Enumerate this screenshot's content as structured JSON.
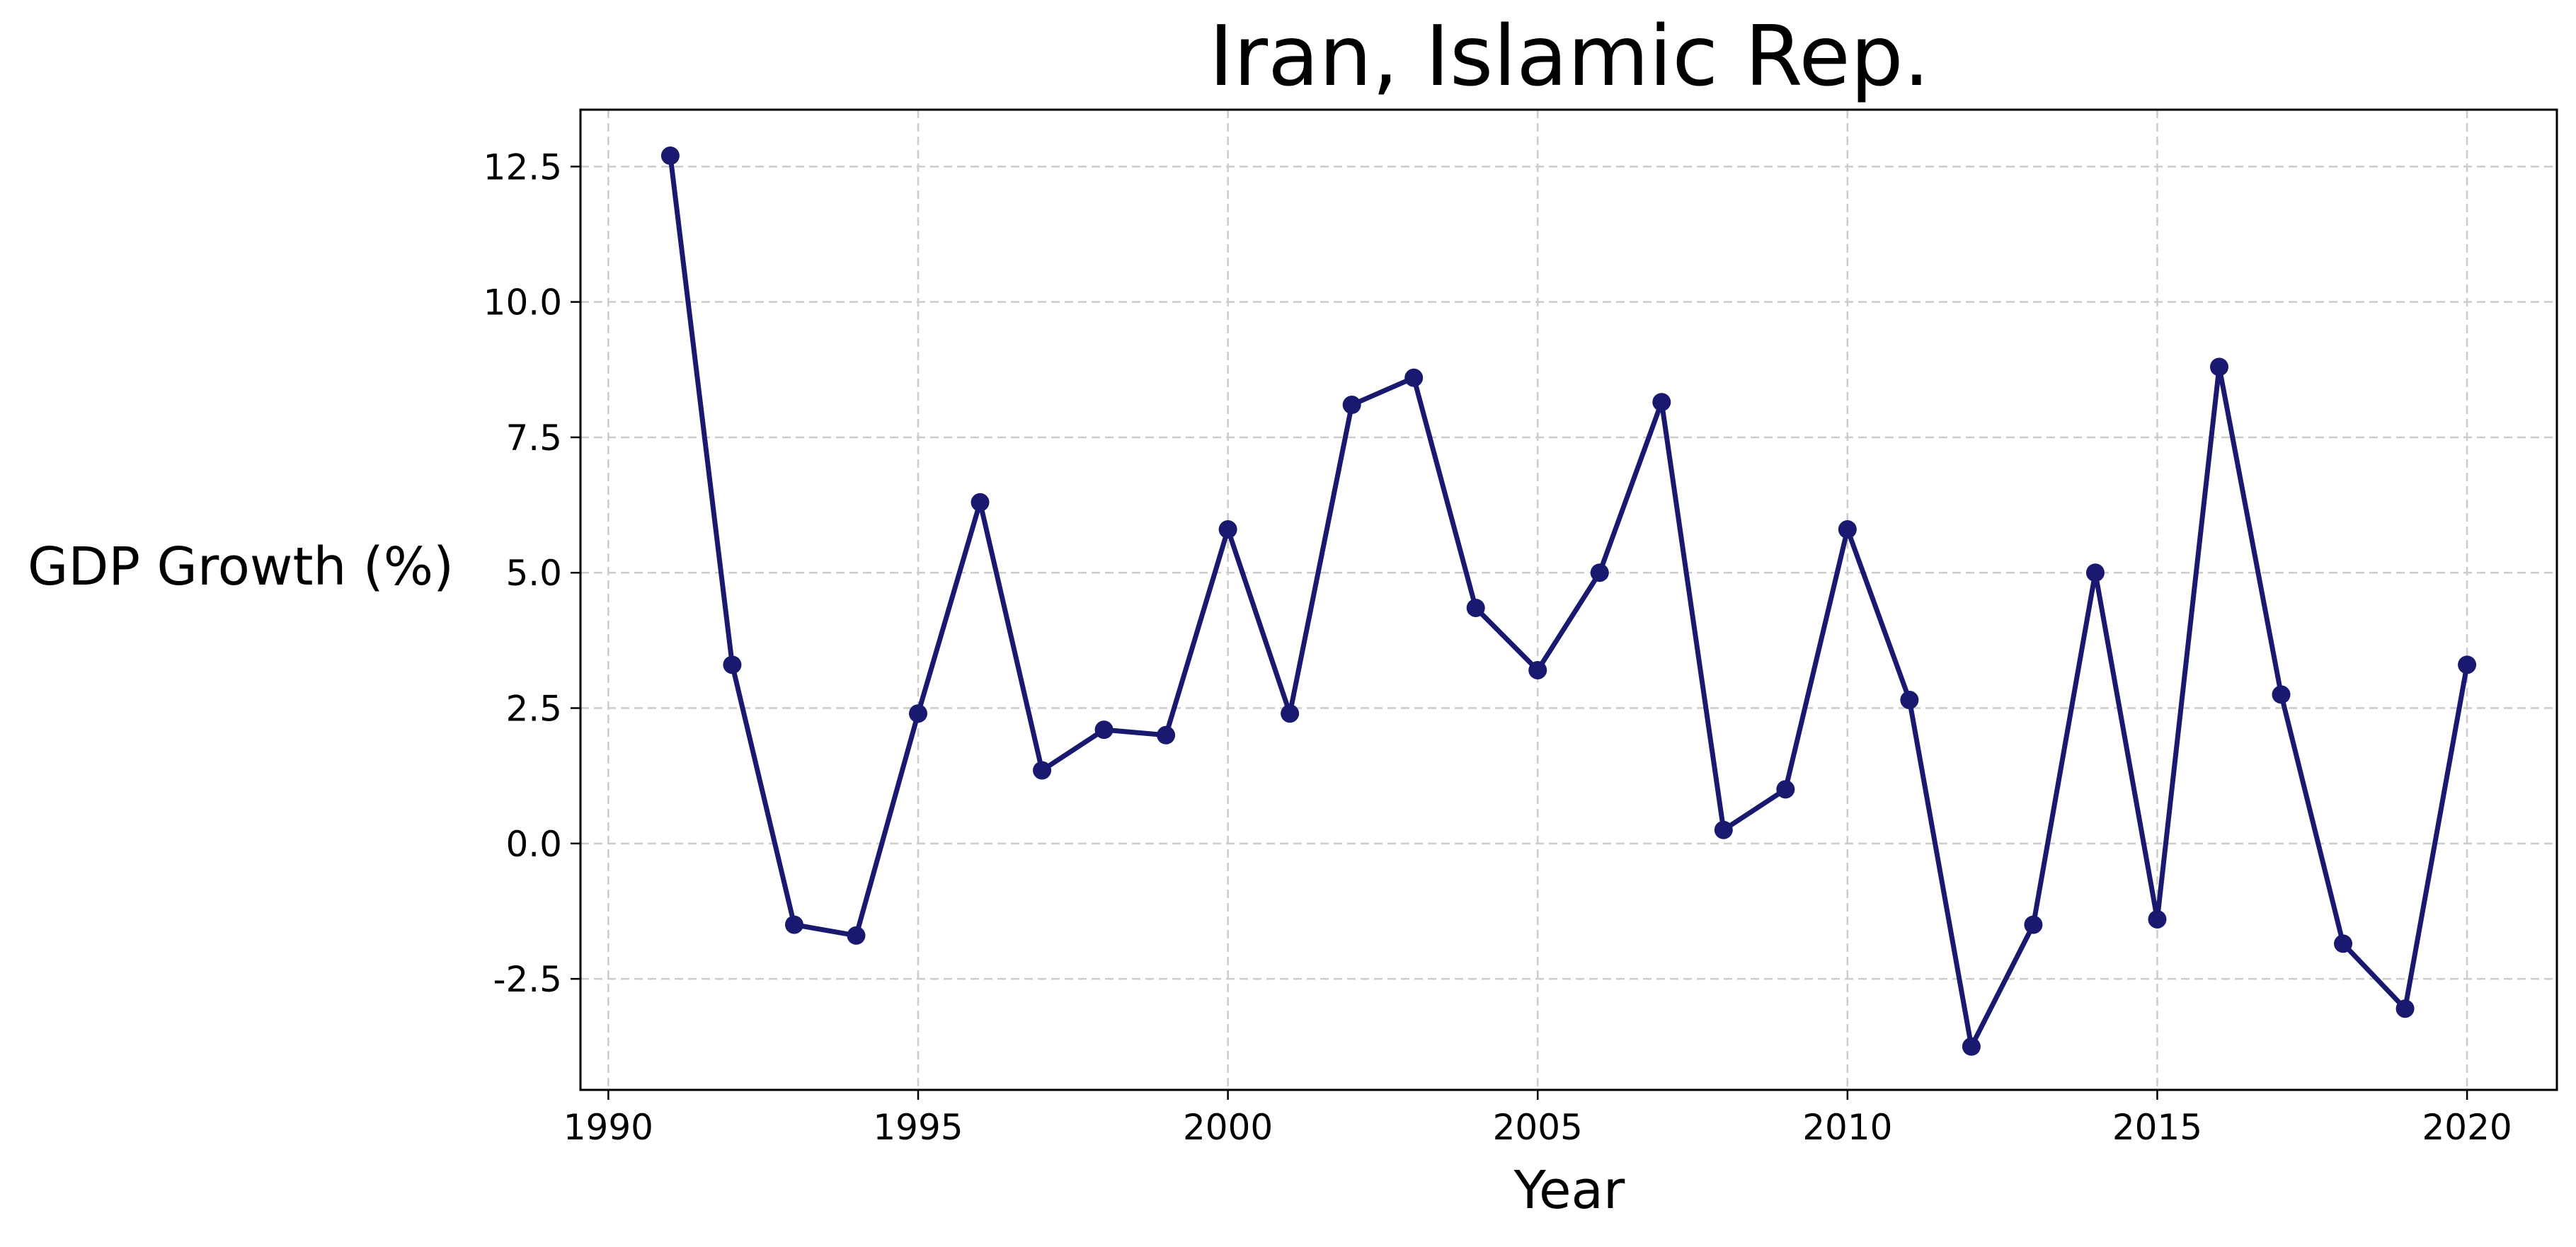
{
  "chart_data": {
    "type": "line",
    "title": "Iran, Islamic Rep.",
    "xlabel": "Year",
    "ylabel": "GDP Growth (%)",
    "x": [
      1991,
      1992,
      1993,
      1994,
      1995,
      1996,
      1997,
      1998,
      1999,
      2000,
      2001,
      2002,
      2003,
      2004,
      2005,
      2006,
      2007,
      2008,
      2009,
      2010,
      2011,
      2012,
      2013,
      2014,
      2015,
      2016,
      2017,
      2018,
      2019,
      2020
    ],
    "series": [
      {
        "values": [
          12.7,
          3.3,
          -1.5,
          -1.7,
          2.4,
          6.3,
          1.35,
          2.1,
          2.0,
          5.8,
          2.4,
          8.1,
          8.6,
          4.35,
          3.2,
          5.0,
          8.15,
          0.25,
          1.0,
          5.8,
          2.65,
          -3.75,
          -1.5,
          5.0,
          -1.4,
          8.8,
          2.75,
          -1.85,
          -3.05,
          3.3
        ],
        "color": "#191970"
      }
    ],
    "xlim": [
      1989.55,
      2021.45
    ],
    "ylim": [
      -4.55,
      13.55
    ],
    "xticks": [
      1990,
      1995,
      2000,
      2005,
      2010,
      2015,
      2020
    ],
    "xtick_labels": [
      "1990",
      "1995",
      "2000",
      "2005",
      "2010",
      "2015",
      "2020"
    ],
    "yticks": [
      -2.5,
      0.0,
      2.5,
      5.0,
      7.5,
      10.0,
      12.5
    ],
    "ytick_labels": [
      "-2.5",
      "0.0",
      "2.5",
      "5.0",
      "7.5",
      "10.0",
      "12.5"
    ],
    "grid": true,
    "legend": "none"
  }
}
